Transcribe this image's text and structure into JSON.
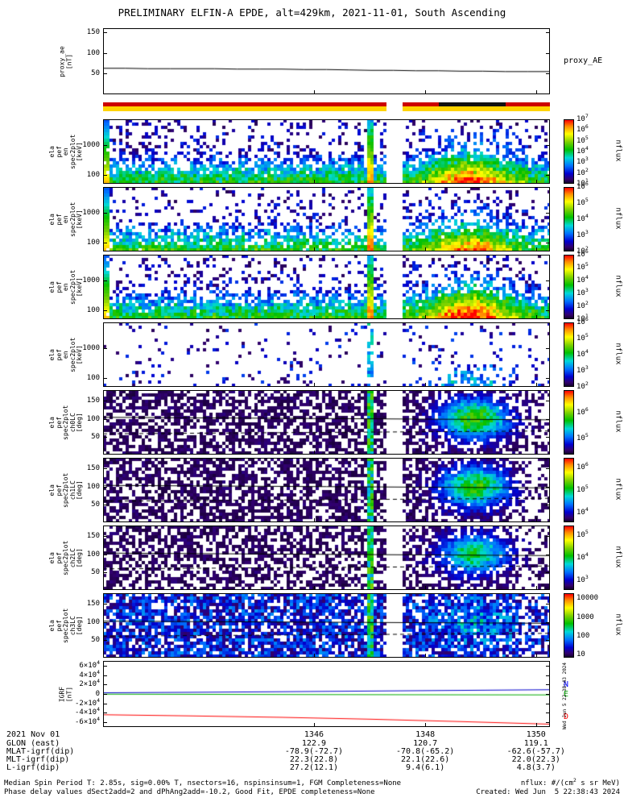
{
  "title": "PRELIMINARY ELFIN-A EPDE, alt=429km, 2021-11-01, South Ascending",
  "footer": {
    "line1": "Median Spin Period T: 2.85s, sig=0.00% T, nsectors=16, nspinsinsum=1, FGM Completeness=None",
    "line2": "Phase delay values dSect2add=2 and dPhAng2add=-10.2, Good Fit, EPDE completeness=None",
    "right1": "nflux: #/(cm^2 s sr MeV)",
    "right2": "Created: Wed Jun  5 22:38:43 2024"
  },
  "side_text": "Wed Jun  5 22:38:43 2024",
  "bottom_rows": [
    {
      "label": "2021 Nov 01",
      "values": [
        "1346",
        "1348",
        "1350"
      ]
    },
    {
      "label": "GLON (east)",
      "values": [
        "122.9",
        "120.7",
        "119.1"
      ]
    },
    {
      "label": "MLAT-igrf(dip)",
      "values": [
        "-78.9(-72.7)",
        "-70.8(-65.2)",
        "-62.6(-57.7)"
      ]
    },
    {
      "label": "MLT-igrf(dip)",
      "values": [
        "22.3(22.8)",
        "22.1(22.6)",
        "22.0(22.3)"
      ]
    },
    {
      "label": "L-igrf(dip)",
      "values": [
        "27.2(12.1)",
        "9.4(6.1)",
        "4.8(3.7)"
      ]
    }
  ],
  "chart_data": {
    "type": "multi-panel-spectrogram",
    "x_ticks": [
      {
        "label": "1346",
        "f": 0.472
      },
      {
        "label": "1348",
        "f": 0.721
      },
      {
        "label": "1350",
        "f": 0.969
      }
    ],
    "gap": [
      0.634,
      0.67
    ],
    "streak": [
      0.589,
      0.607
    ],
    "panels": [
      {
        "id": "proxy_ae",
        "type": "line",
        "ylabel_lines": [
          "proxy_ae",
          "[nT]"
        ],
        "right_label": "proxy_AE",
        "ymin": 0,
        "ymax": 160,
        "yticks": [
          {
            "f": 0.3125,
            "label": "50"
          },
          {
            "f": 0.625,
            "label": "100"
          },
          {
            "f": 0.9375,
            "label": "150"
          }
        ],
        "series": [
          {
            "name": "proxy_AE",
            "color": "#000000",
            "x": [
              0,
              0.05,
              0.1,
              0.15,
              0.2,
              0.25,
              0.3,
              0.35,
              0.4,
              0.45,
              0.5,
              0.55,
              0.6,
              0.65,
              0.7,
              0.75,
              0.8,
              0.85,
              0.9,
              0.95,
              1
            ],
            "y": [
              63,
              63,
              62,
              62,
              62,
              62,
              61,
              61,
              61,
              60,
              60,
              59,
              58,
              58,
              57,
              57,
              56,
              56,
              55,
              55,
              55
            ]
          }
        ]
      },
      {
        "id": "flags",
        "type": "strip",
        "rows": [
          {
            "h": 5,
            "segments": [
              [
                0,
                0.634,
                "#cc0000"
              ],
              [
                0.634,
                0.67,
                "#ffffff"
              ],
              [
                0.67,
                0.751,
                "#cc0000"
              ],
              [
                0.751,
                0.901,
                "#111111"
              ],
              [
                0.901,
                1,
                "#cc0000"
              ]
            ]
          },
          {
            "h": 6,
            "segments": [
              [
                0,
                0.634,
                "#ffd400"
              ],
              [
                0.634,
                0.67,
                "#ffffff"
              ],
              [
                0.67,
                1,
                "#ffd400"
              ]
            ]
          }
        ]
      },
      {
        "id": "en_spec_1",
        "type": "energy",
        "seed": 11,
        "ylabel_lines": [
          "ela",
          "pef",
          "en",
          "spec2plot",
          "[keV]"
        ],
        "yticks": [
          {
            "f": 0.606,
            "label": "1000"
          },
          {
            "f": 0.14,
            "label": "100"
          }
        ],
        "colorbar": {
          "unit": "nflux",
          "labels": [
            [
              "10^7",
              0
            ],
            [
              "10^6",
              0.167
            ],
            [
              "10^5",
              0.333
            ],
            [
              "10^4",
              0.5
            ],
            [
              "10^3",
              0.667
            ],
            [
              "10^2",
              0.833
            ],
            [
              "10^1",
              1
            ]
          ]
        },
        "params": {
          "density": 1,
          "blob": 0.7,
          "sparse": false
        }
      },
      {
        "id": "en_spec_2",
        "type": "energy",
        "seed": 22,
        "ylabel_lines": [
          "ela",
          "pef",
          "en",
          "spec2plot",
          "[keV]"
        ],
        "yticks": [
          {
            "f": 0.606,
            "label": "1000"
          },
          {
            "f": 0.14,
            "label": "100"
          }
        ],
        "colorbar": {
          "unit": "nflux",
          "labels": [
            [
              "10^6",
              0
            ],
            [
              "10^5",
              0.25
            ],
            [
              "10^4",
              0.5
            ],
            [
              "10^3",
              0.75
            ],
            [
              "10^2",
              1
            ]
          ]
        },
        "params": {
          "density": 0.85,
          "blob": 0.55,
          "sparse": false
        }
      },
      {
        "id": "en_spec_3",
        "type": "energy",
        "seed": 33,
        "ylabel_lines": [
          "ela",
          "pef",
          "en",
          "spec2plot",
          "[keV]"
        ],
        "yticks": [
          {
            "f": 0.606,
            "label": "1000"
          },
          {
            "f": 0.14,
            "label": "100"
          }
        ],
        "colorbar": {
          "unit": "nflux",
          "labels": [
            [
              "10^6",
              0
            ],
            [
              "10^5",
              0.2
            ],
            [
              "10^4",
              0.4
            ],
            [
              "10^3",
              0.6
            ],
            [
              "10^2",
              0.8
            ],
            [
              "10^1",
              1
            ]
          ]
        },
        "params": {
          "density": 1,
          "blob": 0.85,
          "sparse": false
        }
      },
      {
        "id": "en_spec_4",
        "type": "energy",
        "seed": 44,
        "ylabel_lines": [
          "ela",
          "pef",
          "en",
          "spec2plot",
          "[keV]"
        ],
        "yticks": [
          {
            "f": 0.606,
            "label": "1000"
          },
          {
            "f": 0.14,
            "label": "100"
          }
        ],
        "colorbar": {
          "unit": "nflux",
          "labels": [
            [
              "10^6",
              0
            ],
            [
              "10^5",
              0.25
            ],
            [
              "10^4",
              0.5
            ],
            [
              "10^3",
              0.75
            ],
            [
              "10^2",
              1
            ]
          ]
        },
        "params": {
          "density": 0.1,
          "blob": 0.3,
          "sparse": true
        }
      },
      {
        "id": "pa_ch0",
        "type": "pitch",
        "seed": 55,
        "ylabel_lines": [
          "ela",
          "pef",
          "spec2plot",
          "ch0LC",
          "[deg]"
        ],
        "yticks": [
          {
            "f": 0.278,
            "label": "50"
          },
          {
            "f": 0.556,
            "label": "100"
          },
          {
            "f": 0.833,
            "label": "150"
          }
        ],
        "colorbar": {
          "unit": "nflux",
          "labels": [
            [
              "10^6",
              0.35
            ],
            [
              "10^5",
              0.75
            ]
          ]
        },
        "params": {
          "bg": 0.62,
          "blob": 0.85,
          "bright": false
        },
        "lines": {
          "solid": [
            104,
            97
          ],
          "dashed": [
            58,
            66
          ]
        }
      },
      {
        "id": "pa_ch1",
        "type": "pitch",
        "seed": 66,
        "ylabel_lines": [
          "ela",
          "pef",
          "spec2plot",
          "ch1LC",
          "[deg]"
        ],
        "yticks": [
          {
            "f": 0.278,
            "label": "50"
          },
          {
            "f": 0.556,
            "label": "100"
          },
          {
            "f": 0.833,
            "label": "150"
          }
        ],
        "colorbar": {
          "unit": "nflux",
          "labels": [
            [
              "10^6",
              0.15
            ],
            [
              "10^5",
              0.5
            ],
            [
              "10^4",
              0.85
            ]
          ]
        },
        "params": {
          "bg": 0.6,
          "blob": 0.8,
          "bright": false
        },
        "lines": {
          "solid": [
            103,
            96
          ],
          "dashed": [
            59,
            67
          ]
        }
      },
      {
        "id": "pa_ch2",
        "type": "pitch",
        "seed": 77,
        "ylabel_lines": [
          "ela",
          "pef",
          "spec2plot",
          "ch2LC",
          "[deg]"
        ],
        "yticks": [
          {
            "f": 0.278,
            "label": "50"
          },
          {
            "f": 0.556,
            "label": "100"
          },
          {
            "f": 0.833,
            "label": "150"
          }
        ],
        "colorbar": {
          "unit": "nflux",
          "labels": [
            [
              "10^5",
              0.15
            ],
            [
              "10^4",
              0.5
            ],
            [
              "10^3",
              0.85
            ]
          ]
        },
        "params": {
          "bg": 0.55,
          "blob": 0.7,
          "bright": false
        },
        "lines": {
          "solid": [
            103,
            96
          ],
          "dashed": [
            59,
            67
          ]
        }
      },
      {
        "id": "pa_ch3",
        "type": "pitch",
        "seed": 88,
        "ylabel_lines": [
          "ela",
          "pef",
          "spec2plot",
          "ch3LC",
          "[deg]"
        ],
        "yticks": [
          {
            "f": 0.278,
            "label": "50"
          },
          {
            "f": 0.556,
            "label": "100"
          },
          {
            "f": 0.833,
            "label": "150"
          }
        ],
        "colorbar": {
          "unit": "nflux",
          "labels": [
            [
              "10000",
              0.08
            ],
            [
              "1000",
              0.38
            ],
            [
              "100",
              0.66
            ],
            [
              "10",
              0.95
            ]
          ]
        },
        "params": {
          "bg": 0.8,
          "blob": 0.2,
          "bright": true
        },
        "lines": {
          "solid": [
            102,
            96
          ],
          "dashed": [
            60,
            68
          ]
        }
      },
      {
        "id": "igrf",
        "type": "line",
        "ylabel_lines": [
          "IGRF",
          "[nT]"
        ],
        "ymin": -70000,
        "ymax": 70000,
        "yticks": [
          {
            "f": 0.9286,
            "label": "6×10^4"
          },
          {
            "f": 0.7857,
            "label": "4×10^4"
          },
          {
            "f": 0.6429,
            "label": "2×10^4"
          },
          {
            "f": 0.5,
            "label": "0"
          },
          {
            "f": 0.3571,
            "label": "-2×10^4"
          },
          {
            "f": 0.2143,
            "label": "-4×10^4"
          },
          {
            "f": 0.0714,
            "label": "-6×10^4"
          }
        ],
        "right_labels": [
          {
            "text": "N",
            "color": "#0000ff"
          },
          {
            "text": "E",
            "color": "#00aa00"
          },
          {
            "text": "D",
            "color": "#ff0000"
          }
        ],
        "series": [
          {
            "name": "N",
            "color": "#0000cc",
            "x": [
              0,
              0.2,
              0.4,
              0.6,
              0.8,
              1
            ],
            "y": [
              2500,
              3500,
              4800,
              6200,
              7600,
              9000
            ]
          },
          {
            "name": "E",
            "color": "#00aa00",
            "x": [
              0,
              0.2,
              0.4,
              0.6,
              0.8,
              1
            ],
            "y": [
              -500,
              -800,
              -1200,
              -1500,
              -1800,
              -2000
            ]
          },
          {
            "name": "D",
            "color": "#ff0000",
            "x": [
              0,
              0.2,
              0.4,
              0.6,
              0.8,
              1
            ],
            "y": [
              -44000,
              -46500,
              -49500,
              -53500,
              -58500,
              -64000
            ]
          }
        ]
      }
    ]
  }
}
